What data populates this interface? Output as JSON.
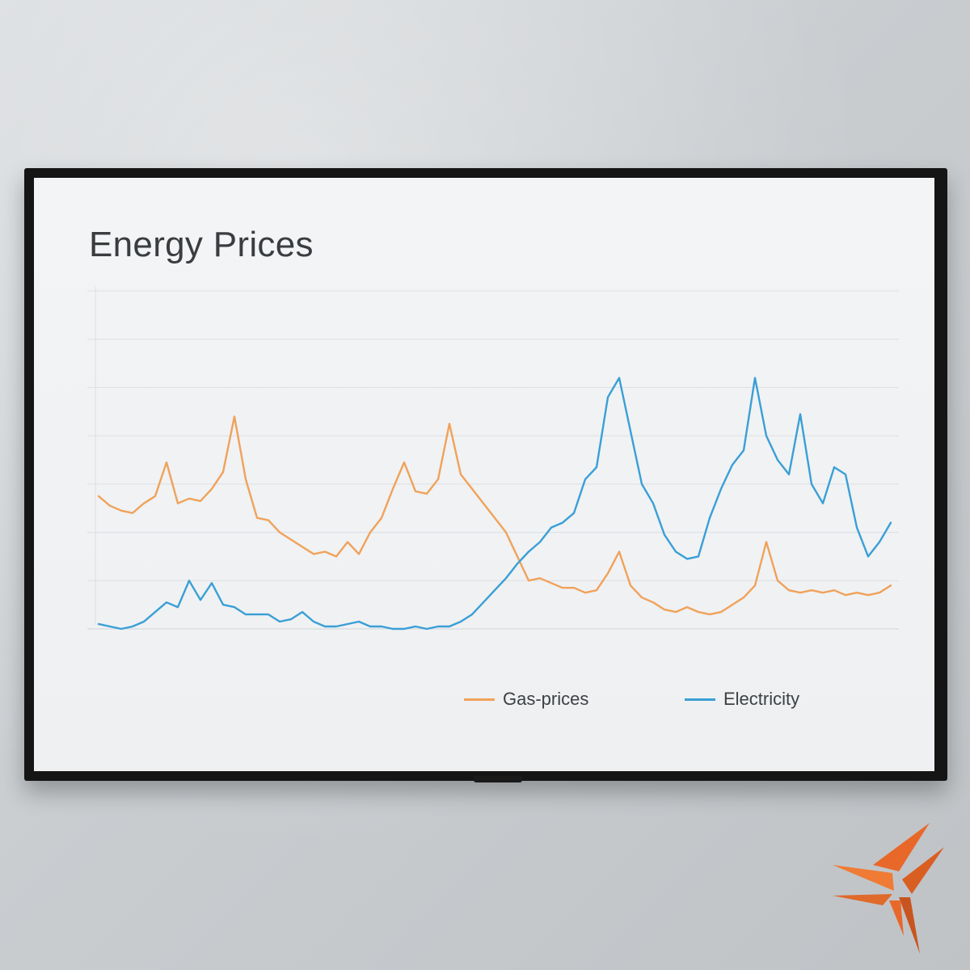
{
  "chart_data": {
    "type": "line",
    "title": "Energy Prices",
    "xlabel": "",
    "ylabel": "",
    "xlim": [
      0,
      140
    ],
    "ylim": [
      0,
      7
    ],
    "grid": true,
    "legend_position": "bottom",
    "series": [
      {
        "name": "Gas-prices",
        "color": "#f0a25a",
        "x": [
          0,
          2,
          4,
          6,
          8,
          10,
          12,
          14,
          16,
          18,
          20,
          22,
          24,
          26,
          28,
          30,
          32,
          34,
          36,
          38,
          40,
          42,
          44,
          46,
          48,
          50,
          52,
          54,
          56,
          58,
          60,
          62,
          64,
          66,
          68,
          70,
          72,
          74,
          76,
          78,
          80,
          82,
          84,
          86,
          88,
          90,
          92,
          94,
          96,
          98,
          100,
          102,
          104,
          106,
          108,
          110,
          112,
          114,
          116,
          118,
          120,
          122,
          124,
          126,
          128,
          130,
          132,
          134,
          136,
          138,
          140
        ],
        "values": [
          2.75,
          2.55,
          2.45,
          2.4,
          2.6,
          2.75,
          3.45,
          2.6,
          2.7,
          2.65,
          2.9,
          3.25,
          4.4,
          3.1,
          2.3,
          2.25,
          2.0,
          1.85,
          1.7,
          1.55,
          1.6,
          1.5,
          1.8,
          1.55,
          2.0,
          2.3,
          2.9,
          3.45,
          2.85,
          2.8,
          3.1,
          4.25,
          3.2,
          2.9,
          2.6,
          2.3,
          2.0,
          1.5,
          1.0,
          1.05,
          0.95,
          0.85,
          0.85,
          0.75,
          0.8,
          1.15,
          1.6,
          0.9,
          0.65,
          0.55,
          0.4,
          0.35,
          0.45,
          0.35,
          0.3,
          0.35,
          0.5,
          0.65,
          0.9,
          1.8,
          1.0,
          0.8,
          0.75,
          0.8,
          0.75,
          0.8,
          0.7,
          0.75,
          0.7,
          0.75,
          0.9
        ]
      },
      {
        "name": "Electricity",
        "color": "#3a9fd6",
        "x": [
          0,
          2,
          4,
          6,
          8,
          10,
          12,
          14,
          16,
          18,
          20,
          22,
          24,
          26,
          28,
          30,
          32,
          34,
          36,
          38,
          40,
          42,
          44,
          46,
          48,
          50,
          52,
          54,
          56,
          58,
          60,
          62,
          64,
          66,
          68,
          70,
          72,
          74,
          76,
          78,
          80,
          82,
          84,
          86,
          88,
          90,
          92,
          94,
          96,
          98,
          100,
          102,
          104,
          106,
          108,
          110,
          112,
          114,
          116,
          118,
          120,
          122,
          124,
          126,
          128,
          130,
          132,
          134,
          136,
          138,
          140
        ],
        "values": [
          0.1,
          0.05,
          0.0,
          0.05,
          0.15,
          0.35,
          0.55,
          0.45,
          1.0,
          0.6,
          0.95,
          0.5,
          0.45,
          0.3,
          0.3,
          0.3,
          0.15,
          0.2,
          0.35,
          0.15,
          0.05,
          0.05,
          0.1,
          0.15,
          0.05,
          0.05,
          0.0,
          0.0,
          0.05,
          0.0,
          0.05,
          0.05,
          0.15,
          0.3,
          0.55,
          0.8,
          1.05,
          1.35,
          1.6,
          1.8,
          2.1,
          2.2,
          2.4,
          3.1,
          3.35,
          4.8,
          5.2,
          4.1,
          3.0,
          2.6,
          1.95,
          1.6,
          1.45,
          1.5,
          2.3,
          2.9,
          3.4,
          3.7,
          5.2,
          4.0,
          3.5,
          3.2,
          4.45,
          3.0,
          2.6,
          3.35,
          3.2,
          2.1,
          1.5,
          1.8,
          2.2
        ]
      }
    ]
  },
  "logo": {
    "name": "star-logo-icon",
    "colors": [
      "#e8682a",
      "#c8551f"
    ]
  }
}
